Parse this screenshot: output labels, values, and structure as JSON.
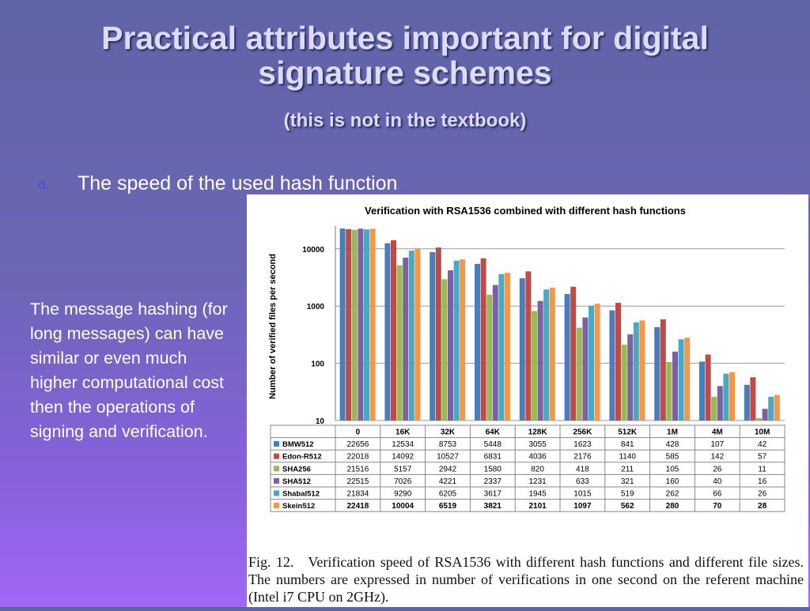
{
  "slide": {
    "title": "Practical attributes important for digital signature schemes",
    "subtitle": "(this is not in the textbook)",
    "bullet_marker": "d.",
    "bullet_text": "The speed of the used hash function",
    "side_text": "The message hashing (for long messages) can have similar or even much higher computational cost then the operations of signing and verification.",
    "caption_label": "Fig. 12.",
    "caption_text": "Verification speed of RSA1536 with different hash functions and different file sizes. The numbers are expressed in number of verifications in one second on the referent machine (Intel i7 CPU on 2GHz)."
  },
  "chart_data": {
    "type": "bar",
    "title": "Verification with RSA1536 combined with different hash functions",
    "ylabel": "Number of verified files per second",
    "xlabel": "",
    "y_scale": "log",
    "ylim": [
      10,
      25000
    ],
    "y_ticks": [
      10,
      100,
      1000,
      10000
    ],
    "grid": true,
    "categories": [
      "0",
      "16K",
      "32K",
      "64K",
      "128K",
      "256K",
      "512K",
      "1M",
      "4M",
      "10M"
    ],
    "series": [
      {
        "name": "BMW512",
        "color": "#4a7ebb",
        "values": [
          22656,
          12534,
          8753,
          5448,
          3055,
          1623,
          841,
          428,
          107,
          42
        ]
      },
      {
        "name": "Edon-R512",
        "color": "#be4b48",
        "values": [
          22018,
          14092,
          10527,
          6831,
          4036,
          2176,
          1140,
          585,
          142,
          57
        ]
      },
      {
        "name": "SHA256",
        "color": "#98b954",
        "values": [
          21516,
          5157,
          2942,
          1580,
          820,
          418,
          211,
          105,
          26,
          11
        ]
      },
      {
        "name": "SHA512",
        "color": "#7d60a0",
        "values": [
          22515,
          7026,
          4221,
          2337,
          1231,
          633,
          321,
          160,
          40,
          16
        ]
      },
      {
        "name": "Shabal512",
        "color": "#46aac5",
        "values": [
          21834,
          9290,
          6205,
          3617,
          1945,
          1015,
          519,
          262,
          66,
          26
        ]
      },
      {
        "name": "Skein512",
        "color": "#f79646",
        "values": [
          22418,
          10004,
          6519,
          3821,
          2101,
          1097,
          562,
          280,
          70,
          28
        ],
        "bold": true
      }
    ]
  }
}
